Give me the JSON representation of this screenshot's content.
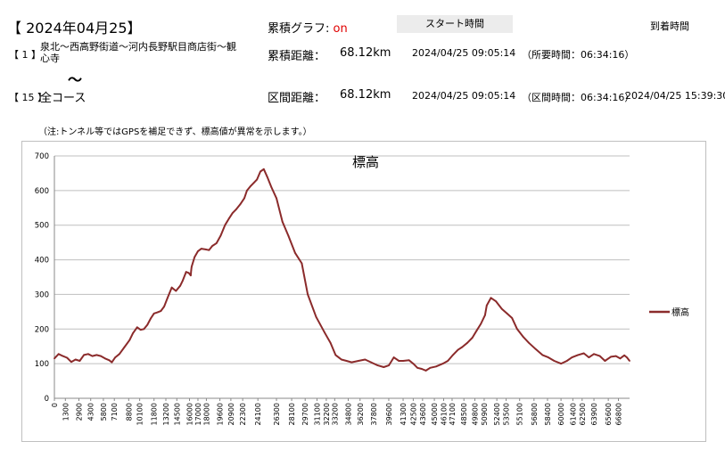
{
  "header": {
    "date_title": "【 2024年04月25】",
    "graph_label": "累積グラフ:",
    "graph_state": "on",
    "start_time_header": "スタート時間",
    "arrival_time_header": "到着時間"
  },
  "route": {
    "segment_no": "【 1 】",
    "segment_name_line1": "泉北～西高野街道～河内長野駅目商店街～観",
    "segment_name_line2": "心寺",
    "tilde": "～",
    "course_no": "【 15 】",
    "course_name": "全コース"
  },
  "stats": {
    "cumulative_label": "累積距離：",
    "cumulative_value": "68.12km",
    "cumulative_start": "2024/04/25 09:05:14",
    "cumulative_duration": "（所要時間：06:34:16）",
    "section_label": "区間距離：",
    "section_value": "68.12km",
    "section_start": "2024/04/25 09:05:14",
    "section_duration": "（区間時間：06:34:16）",
    "section_arrival": "2024/04/25 15:39:30"
  },
  "note": "（注:トンネル等ではGPSを補足できず、標高値が異常を示します。）",
  "colors": {
    "line": "#8b2b2b",
    "grid": "#bfbfbf",
    "on": "#e00000"
  },
  "chart_data": {
    "type": "line",
    "title": "標高",
    "xlabel": "",
    "ylabel": "",
    "xlim": [
      0,
      68120
    ],
    "ylim": [
      0,
      700
    ],
    "yticks": [
      0,
      100,
      200,
      300,
      400,
      500,
      600,
      700
    ],
    "xticks": [
      0,
      1300,
      2900,
      4300,
      5800,
      7100,
      8800,
      10100,
      11800,
      13200,
      14500,
      16000,
      17000,
      18000,
      19600,
      20900,
      22300,
      24100,
      26300,
      28100,
      29700,
      31100,
      32200,
      33200,
      34800,
      36200,
      37800,
      39600,
      41300,
      42500,
      43600,
      45000,
      46100,
      47100,
      48500,
      49800,
      50900,
      52400,
      53500,
      55100,
      56800,
      58400,
      60000,
      61400,
      62500,
      63900,
      65600,
      66800
    ],
    "grid": "horizontal",
    "legend": "right",
    "series": [
      {
        "name": "標高",
        "x": [
          0,
          500,
          1000,
          1500,
          2000,
          2500,
          3000,
          3500,
          4000,
          4500,
          5000,
          5500,
          6000,
          6500,
          6800,
          7200,
          7700,
          8300,
          8900,
          9300,
          9800,
          10200,
          10600,
          11000,
          11400,
          11800,
          12200,
          12600,
          13000,
          13400,
          13900,
          14400,
          14900,
          15200,
          15600,
          15900,
          16150,
          16200,
          16250,
          16600,
          17000,
          17400,
          17900,
          18300,
          18700,
          19200,
          19700,
          20200,
          20700,
          21100,
          21500,
          22000,
          22500,
          22800,
          23200,
          23600,
          24000,
          24400,
          24800,
          25200,
          25700,
          26300,
          27000,
          27700,
          28500,
          29300,
          30000,
          31000,
          32000,
          32700,
          33300,
          34000,
          34600,
          35200,
          36000,
          36800,
          37500,
          38300,
          39000,
          39600,
          40200,
          40800,
          41300,
          42000,
          42500,
          43000,
          43500,
          44000,
          44500,
          45200,
          46000,
          46600,
          47200,
          47800,
          48300,
          48900,
          49500,
          50000,
          50500,
          51000,
          51200,
          51700,
          52300,
          53000,
          53600,
          54200,
          54800,
          55500,
          56200,
          57000,
          57800,
          58500,
          59200,
          60000,
          60700,
          61300,
          62000,
          62700,
          63300,
          63900,
          64600,
          65200,
          65900,
          66500,
          67000,
          67500,
          67800,
          68120
        ],
        "values": [
          115,
          128,
          122,
          117,
          105,
          112,
          108,
          125,
          128,
          122,
          125,
          122,
          115,
          110,
          104,
          118,
          128,
          148,
          168,
          188,
          205,
          198,
          200,
          212,
          230,
          245,
          248,
          252,
          265,
          290,
          320,
          310,
          325,
          340,
          365,
          362,
          355,
          370,
          380,
          408,
          425,
          432,
          430,
          428,
          440,
          448,
          470,
          500,
          520,
          535,
          545,
          560,
          578,
          600,
          612,
          622,
          632,
          655,
          662,
          640,
          610,
          578,
          510,
          470,
          420,
          390,
          300,
          235,
          190,
          160,
          125,
          112,
          108,
          104,
          108,
          112,
          104,
          95,
          90,
          95,
          118,
          108,
          108,
          110,
          100,
          88,
          85,
          80,
          88,
          92,
          100,
          108,
          125,
          140,
          148,
          160,
          175,
          195,
          215,
          240,
          268,
          290,
          280,
          258,
          245,
          232,
          200,
          178,
          160,
          142,
          125,
          118,
          108,
          100,
          108,
          118,
          125,
          130,
          118,
          128,
          122,
          108,
          120,
          122,
          115,
          124,
          118,
          108
        ]
      }
    ]
  }
}
